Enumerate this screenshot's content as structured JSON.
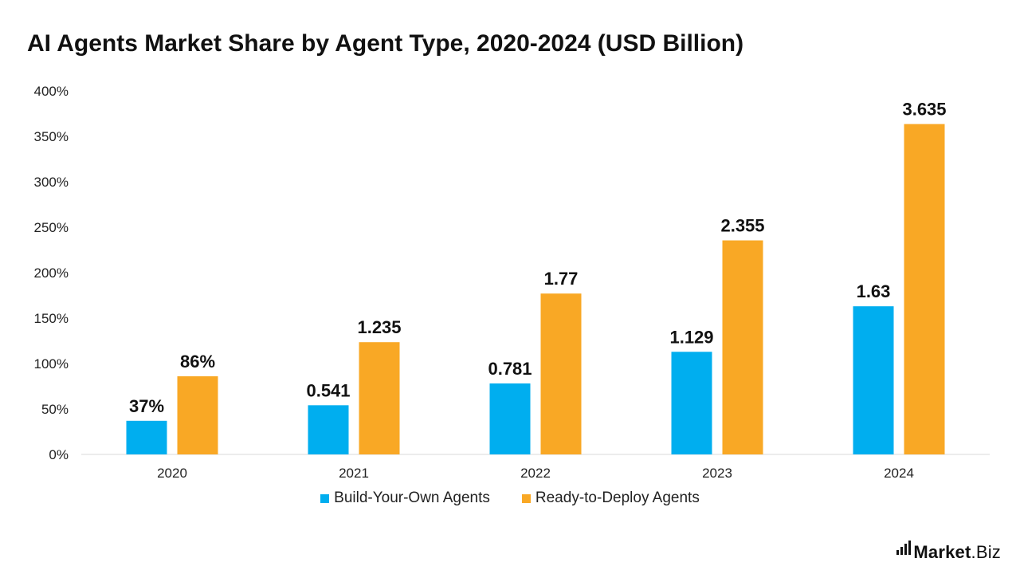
{
  "brand": {
    "name_bold": "Market",
    "name_suffix": ".Biz"
  },
  "chart_data": {
    "type": "bar",
    "title": "AI Agents Market Share by Agent Type, 2020-2024 (USD Billion)",
    "categories": [
      "2020",
      "2021",
      "2022",
      "2023",
      "2024"
    ],
    "series": [
      {
        "name": "Build-Your-Own Agents",
        "color": "#00AEEF",
        "values": [
          0.37,
          0.541,
          0.781,
          1.129,
          1.63
        ],
        "labels": [
          "37%",
          "0.541",
          "0.781",
          "1.129",
          "1.63"
        ]
      },
      {
        "name": "Ready-to-Deploy Agents",
        "color": "#F9A825",
        "values": [
          0.86,
          1.235,
          1.77,
          2.355,
          3.635
        ],
        "labels": [
          "86%",
          "1.235",
          "1.77",
          "2.355",
          "3.635"
        ]
      }
    ],
    "yticks": [
      "0%",
      "50%",
      "100%",
      "150%",
      "200%",
      "250%",
      "300%",
      "350%",
      "400%"
    ],
    "ylim": [
      0,
      4
    ],
    "grid": false,
    "legend_position": "bottom"
  }
}
